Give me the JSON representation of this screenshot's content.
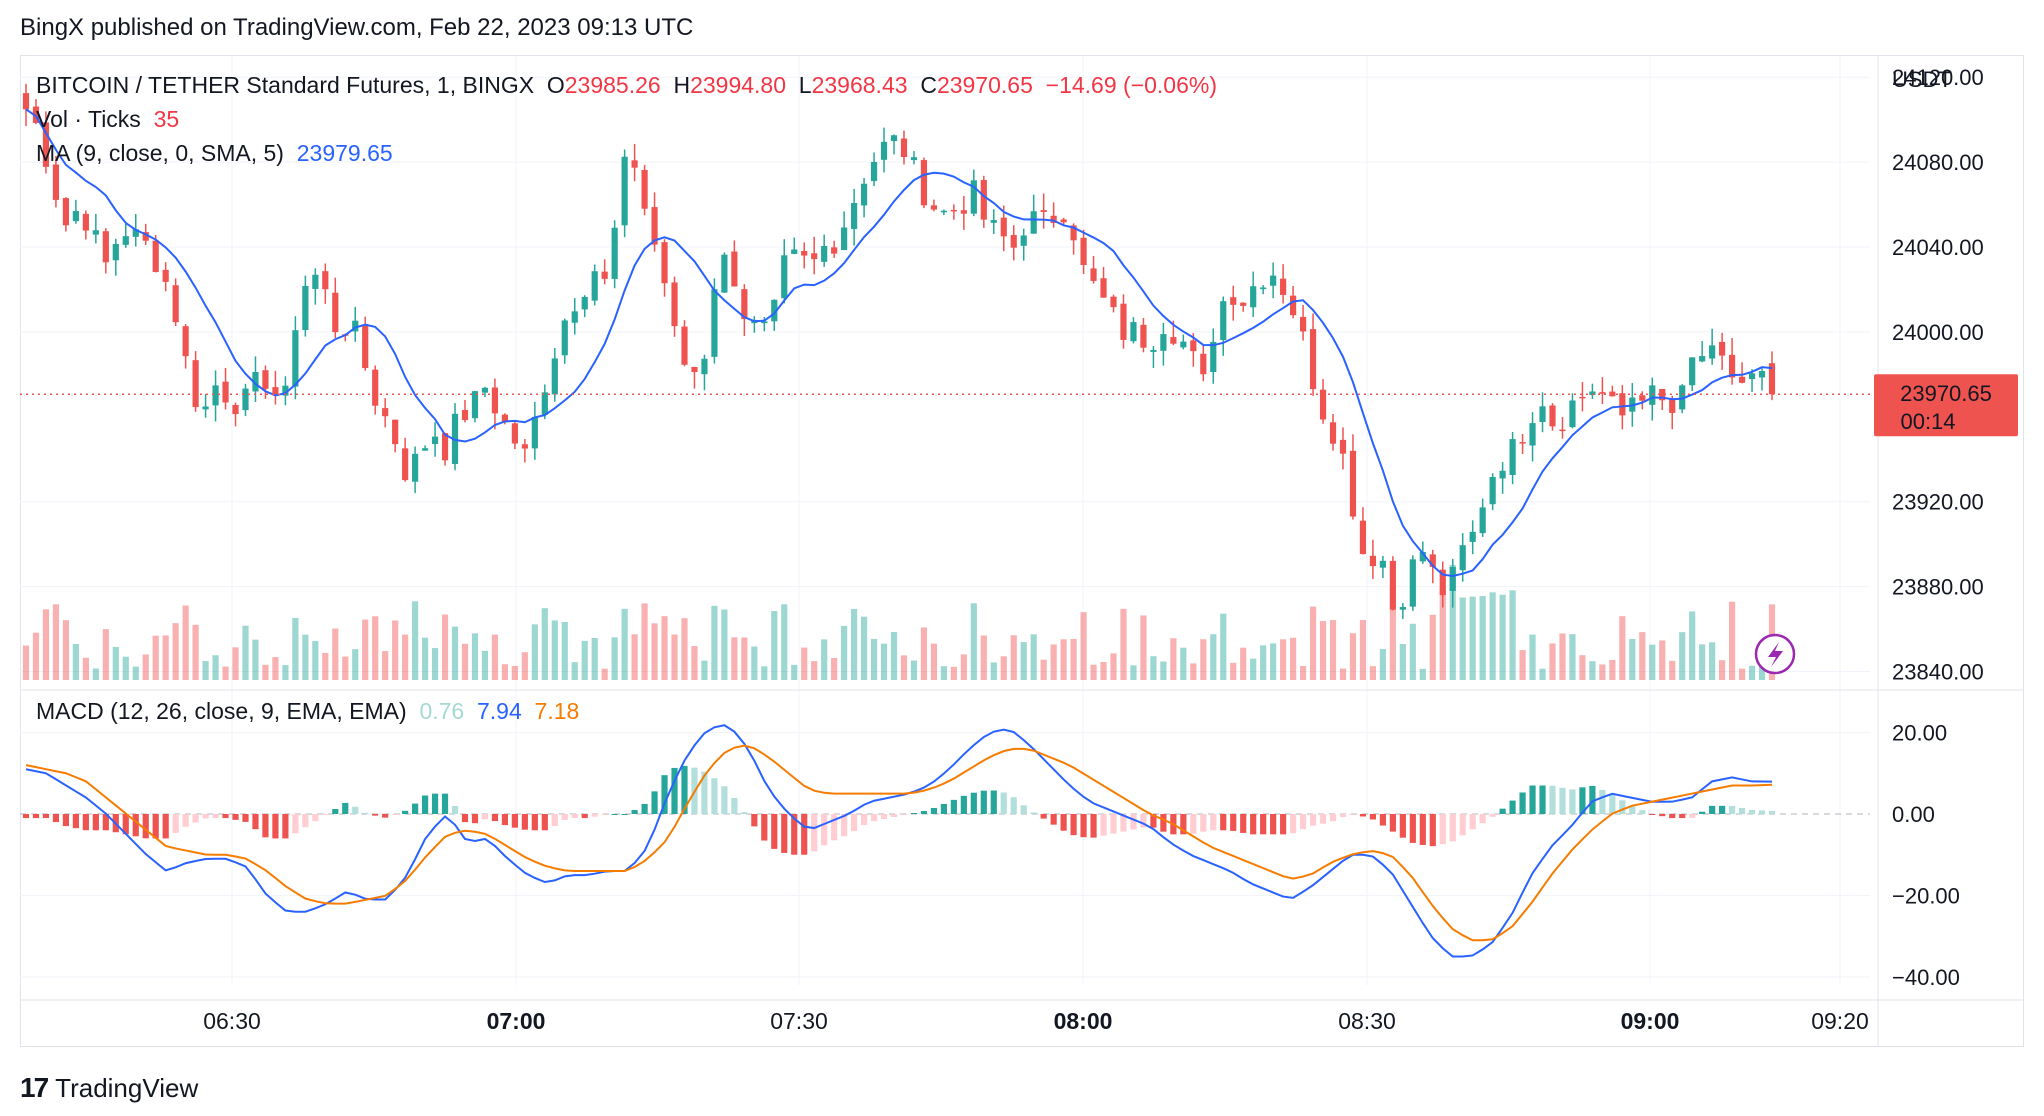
{
  "publisher": "BingX published on TradingView.com, Feb 22, 2023 09:13 UTC",
  "footer_brand": "TradingView",
  "legend": {
    "symbol": "BITCOIN / TETHER Standard Futures, 1, BINGX",
    "o_label": "O",
    "o_value": "23985.26",
    "h_label": "H",
    "h_value": "23994.80",
    "l_label": "L",
    "l_value": "23968.43",
    "c_label": "C",
    "c_value": "23970.65",
    "change": "−14.69 (−0.06%)",
    "vol_label": "Vol · Ticks",
    "vol_value": "35",
    "ma_label": "MA (9, close, 0, SMA, 5)",
    "ma_value": "23979.65",
    "macd_label": "MACD (12, 26, close, 9, EMA, EMA)",
    "macd_hist": "0.76",
    "macd_line": "7.94",
    "macd_signal": "7.18"
  },
  "price_axis": {
    "currency": "USDT",
    "ticks": [
      "24120.00",
      "24080.00",
      "24040.00",
      "24000.00",
      "23920.00",
      "23880.00",
      "23840.00"
    ],
    "last_price": "23970.65",
    "countdown": "00:14"
  },
  "macd_axis": {
    "ticks": [
      "20.00",
      "0.00",
      "−20.00",
      "−40.00"
    ]
  },
  "time_axis": {
    "ticks": [
      {
        "label": "06:30",
        "bold": false
      },
      {
        "label": "07:00",
        "bold": true
      },
      {
        "label": "07:30",
        "bold": false
      },
      {
        "label": "08:00",
        "bold": true
      },
      {
        "label": "08:30",
        "bold": false
      },
      {
        "label": "09:00",
        "bold": true
      },
      {
        "label": "09:20",
        "bold": false
      }
    ]
  },
  "colors": {
    "up": "#26a69a",
    "down": "#ef5350",
    "ma": "#2962ff",
    "signal": "#f57c00",
    "grid": "#f0f3fa"
  },
  "chart_data": {
    "type": "candlestick",
    "y_range": [
      23836,
      24130
    ],
    "macd_range": [
      -42,
      28
    ],
    "close_path_anchors": [
      24105,
      24095,
      24070,
      24050,
      24060,
      24045,
      24030,
      24050,
      24045,
      24040,
      24030,
      24010,
      23980,
      23960,
      23975,
      23970,
      23965,
      23975,
      23980,
      23960,
      24010,
      24030,
      24020,
      24000,
      24005,
      23985,
      23965,
      23955,
      23935,
      23940,
      23955,
      23945,
      23960,
      23965,
      23975,
      23960,
      23950,
      23940,
      23970,
      23990,
      24010,
      24020,
      24030,
      24020,
      24075,
      24080,
      24050,
      24030,
      23995,
      23980,
      23985,
      24030,
      24035,
      24010,
      24000,
      24000,
      24030,
      24035,
      24030,
      24040,
      24045,
      24060,
      24075,
      24085,
      24090,
      24085,
      24070,
      24060,
      24055,
      24060,
      24065,
      24050,
      24045,
      24040,
      24055,
      24050,
      24055,
      24060,
      24030,
      24020,
      24010,
      24000,
      24000,
      23995,
      24005,
      24000,
      23990,
      23975,
      24010,
      24020,
      24015,
      24025,
      24030,
      24020,
      24005,
      23980,
      23960,
      23950,
      23920,
      23890,
      23900,
      23870,
      23880,
      23900,
      23885,
      23875,
      23895,
      23905,
      23930,
      23940,
      23945,
      23960,
      23970,
      23955,
      23965,
      23970,
      23975,
      23965,
      23960,
      23975,
      23970,
      23965,
      23960,
      23985,
      23990,
      23985,
      23980,
      23975,
      23980,
      23970.65
    ],
    "volume_max": 110,
    "macd_line_anchors": [
      11,
      10,
      7,
      4,
      0,
      -5,
      -10,
      -14,
      -12,
      -11,
      -11,
      -13,
      -20,
      -24,
      -24,
      -22,
      -19,
      -21,
      -21,
      -15,
      -5,
      0,
      -7,
      -6,
      -11,
      -15,
      -17,
      -15,
      -15,
      -14,
      -14,
      -8,
      5,
      15,
      21,
      22,
      16,
      6,
      0,
      -4,
      -2,
      0,
      3,
      4,
      5,
      7,
      11,
      16,
      20,
      21,
      17,
      12,
      7,
      3,
      1,
      -1,
      -3,
      -7,
      -10,
      -12,
      -14,
      -17,
      -19,
      -21,
      -18,
      -14,
      -10,
      -10,
      -14,
      -22,
      -30,
      -35,
      -35,
      -32,
      -25,
      -15,
      -8,
      -3,
      3,
      5,
      4,
      3,
      3,
      4,
      8,
      9,
      8,
      7.94
    ],
    "signal_anchors": [
      12,
      11,
      10,
      8,
      4,
      0,
      -4,
      -8,
      -9,
      -10,
      -10,
      -11,
      -14,
      -18,
      -21,
      -22,
      -22,
      -21,
      -20,
      -16,
      -10,
      -5,
      -4,
      -5,
      -8,
      -11,
      -13,
      -14,
      -14,
      -14,
      -14,
      -11,
      -6,
      3,
      11,
      16,
      17,
      14,
      10,
      6,
      5,
      5,
      5,
      5,
      5,
      6,
      8,
      11,
      14,
      16,
      16,
      14,
      12,
      9,
      6,
      3,
      0,
      -2,
      -5,
      -8,
      -10,
      -12,
      -14,
      -16,
      -15,
      -12,
      -10,
      -9,
      -10,
      -15,
      -22,
      -28,
      -31,
      -31,
      -28,
      -22,
      -15,
      -9,
      -4,
      0,
      2,
      3,
      4,
      5,
      6,
      7,
      7,
      7.18
    ],
    "title": "BITCOIN / TETHER Standard Futures, 1, BINGX"
  }
}
